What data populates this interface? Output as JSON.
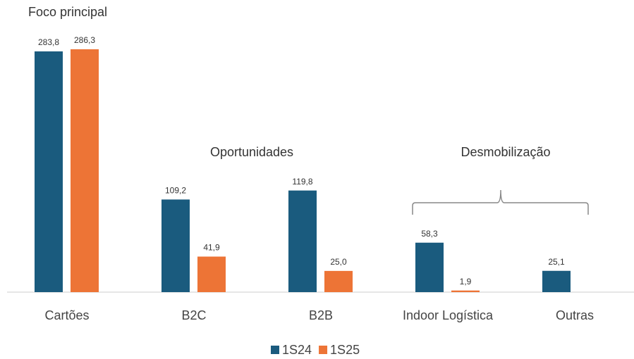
{
  "chart_data": {
    "type": "bar",
    "categories": [
      "Cartões",
      "B2C",
      "B2B",
      "Indoor Logística",
      "Outras"
    ],
    "series": [
      {
        "name": "1S24",
        "color": "#1a5b7e",
        "values": [
          283.8,
          109.2,
          119.8,
          58.3,
          25.1
        ],
        "value_labels": [
          "283,8",
          "109,2",
          "119,8",
          "58,3",
          "25,1"
        ]
      },
      {
        "name": "1S25",
        "color": "#ed7436",
        "values": [
          286.3,
          41.9,
          25.0,
          1.9,
          null
        ],
        "value_labels": [
          "286,3",
          "41,9",
          "25,0",
          "1,9",
          null
        ]
      }
    ],
    "annotations": [
      "Foco principal",
      "Oportunidades",
      "Desmobilização"
    ],
    "legend": "bottom"
  }
}
